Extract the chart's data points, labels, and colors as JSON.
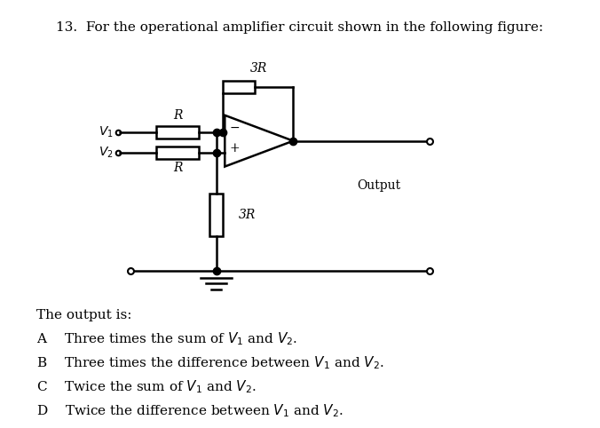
{
  "title": "13.  For the operational amplifier circuit shown in the following figure:",
  "background_color": "#ffffff",
  "text_color": "#000000",
  "question_text": "The output is:",
  "options": [
    "A  Three times the sum of $V_1$ and $V_2$.",
    "B  Three times the difference between $V_1$ and $V_2$.",
    "C  Twice the sum of $V_1$ and $V_2$.",
    "D  Twice the difference between $V_1$ and $V_2$."
  ],
  "circuit": {
    "v1_label": "$V_1$",
    "v2_label": "$V_2$",
    "r_top_label": "R",
    "r_bot_label": "R",
    "r_feedback_label": "3R",
    "r_ground_label": "3R",
    "output_label": "Output",
    "neg_sign": "−",
    "pos_sign": "+"
  }
}
